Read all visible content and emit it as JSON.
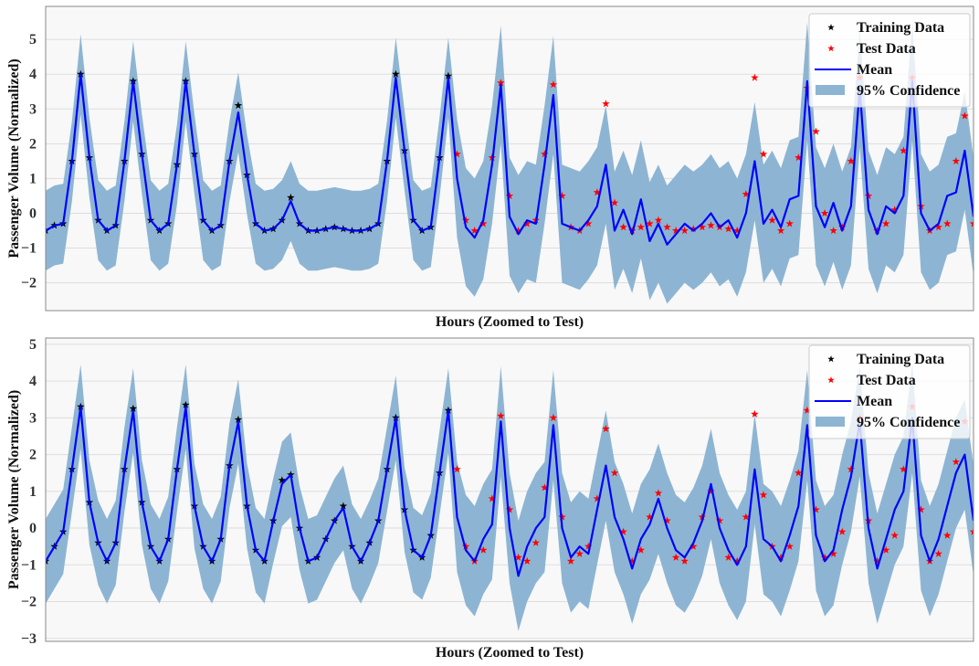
{
  "colors": {
    "training": "#000000",
    "test": "#ff0000",
    "mean": "#0000ff",
    "confidence": "#8db5d3",
    "background": "#f8f8f8",
    "grid": "#dddddd"
  },
  "chart_data": [
    {
      "type": "line",
      "xlabel": "Hours (Zoomed to Test)",
      "ylabel": "Passenger Volume (Normalized)",
      "ylim": [
        -2.8,
        5.95
      ],
      "yticks": [
        -2,
        -1,
        0,
        1,
        2,
        3,
        4,
        5
      ],
      "grid": "horizontal",
      "legend_placement": "top-right",
      "legend": [
        "Training Data",
        "Test Data",
        "Mean",
        "95% Confidence"
      ],
      "x": [
        0,
        4,
        8,
        12,
        16,
        20,
        24,
        28,
        32,
        36,
        40,
        44,
        48,
        52,
        56,
        60,
        64,
        68,
        72,
        76,
        80,
        84,
        88,
        92,
        96,
        100,
        104,
        108,
        112,
        116,
        120,
        124,
        128,
        132,
        136,
        140,
        144,
        148,
        152,
        156,
        160,
        164,
        168,
        172,
        176,
        180,
        184,
        188,
        192,
        196,
        200,
        204,
        208,
        212,
        216,
        220,
        224,
        228,
        232,
        236,
        240,
        244,
        248,
        252,
        256,
        260,
        264,
        268,
        272,
        276,
        280,
        284,
        288,
        292,
        296,
        300,
        304,
        308,
        312,
        316,
        320,
        324,
        328,
        332,
        336,
        340,
        344,
        348,
        352,
        356,
        360,
        364,
        368,
        372,
        376,
        380,
        384,
        388,
        392,
        396,
        400,
        404,
        408,
        412,
        416,
        420,
        424
      ],
      "mean": [
        -0.5,
        -0.35,
        -0.3,
        1.5,
        4.0,
        1.6,
        -0.2,
        -0.5,
        -0.35,
        1.5,
        3.8,
        1.7,
        -0.2,
        -0.5,
        -0.3,
        1.4,
        3.8,
        1.7,
        -0.2,
        -0.5,
        -0.35,
        1.5,
        2.9,
        1.1,
        -0.3,
        -0.5,
        -0.45,
        -0.2,
        0.35,
        -0.3,
        -0.5,
        -0.5,
        -0.45,
        -0.4,
        -0.45,
        -0.5,
        -0.5,
        -0.45,
        -0.3,
        1.5,
        3.9,
        1.8,
        -0.2,
        -0.5,
        -0.4,
        1.6,
        3.9,
        1.0,
        -0.4,
        -0.7,
        -0.2,
        1.4,
        3.7,
        -0.1,
        -0.6,
        -0.2,
        -0.3,
        1.4,
        3.4,
        -0.3,
        -0.4,
        -0.5,
        -0.2,
        0.2,
        1.4,
        -0.5,
        0.1,
        -0.6,
        0.4,
        -0.8,
        -0.3,
        -0.9,
        -0.6,
        -0.3,
        -0.5,
        -0.3,
        0.0,
        -0.4,
        -0.2,
        -0.7,
        0.0,
        1.5,
        -0.3,
        0.1,
        -0.4,
        0.4,
        0.5,
        3.8,
        0.2,
        -0.4,
        0.3,
        -0.5,
        0.2,
        3.6,
        0.1,
        -0.6,
        0.2,
        0.0,
        0.5,
        3.8,
        0.0,
        -0.5,
        -0.3,
        0.5,
        0.6,
        1.8,
        -0.1
      ],
      "lower": [
        -1.65,
        -1.5,
        -1.45,
        0.35,
        2.85,
        0.45,
        -1.35,
        -1.65,
        -1.5,
        0.35,
        2.65,
        0.55,
        -1.35,
        -1.65,
        -1.45,
        0.25,
        2.65,
        0.55,
        -1.35,
        -1.65,
        -1.5,
        0.35,
        1.75,
        -0.05,
        -1.45,
        -1.65,
        -1.6,
        -1.35,
        -0.8,
        -1.45,
        -1.65,
        -1.65,
        -1.6,
        -1.55,
        -1.6,
        -1.65,
        -1.65,
        -1.6,
        -1.45,
        0.35,
        2.75,
        0.65,
        -1.35,
        -1.65,
        -1.55,
        0.45,
        2.75,
        -0.7,
        -2.1,
        -2.4,
        -1.9,
        -0.3,
        2.0,
        -1.8,
        -2.3,
        -1.9,
        -2.0,
        -0.3,
        1.7,
        -2.0,
        -2.1,
        -2.2,
        -1.9,
        -1.5,
        -0.3,
        -2.2,
        -1.6,
        -2.3,
        -1.3,
        -2.5,
        -2.0,
        -2.6,
        -2.3,
        -2.0,
        -2.2,
        -2.0,
        -1.7,
        -2.1,
        -1.9,
        -2.4,
        -1.7,
        -0.2,
        -2.0,
        -1.6,
        -2.1,
        -1.3,
        -1.2,
        2.1,
        -1.5,
        -2.1,
        -1.4,
        -2.2,
        -1.5,
        1.9,
        -1.6,
        -2.3,
        -1.5,
        -1.7,
        -1.2,
        2.1,
        -1.7,
        -2.2,
        -2.0,
        -1.2,
        -1.1,
        0.1,
        -1.8
      ],
      "upper": [
        0.65,
        0.8,
        0.85,
        2.65,
        5.15,
        2.75,
        0.95,
        0.65,
        0.8,
        2.65,
        4.95,
        2.85,
        0.95,
        0.65,
        0.85,
        2.55,
        4.95,
        2.85,
        0.95,
        0.65,
        0.8,
        2.65,
        4.05,
        2.25,
        0.85,
        0.65,
        0.7,
        0.95,
        1.5,
        0.85,
        0.65,
        0.65,
        0.7,
        0.75,
        0.7,
        0.65,
        0.65,
        0.7,
        0.85,
        2.65,
        5.05,
        2.95,
        0.95,
        0.65,
        0.75,
        2.75,
        5.05,
        2.7,
        1.3,
        1.0,
        1.5,
        3.1,
        5.4,
        1.6,
        1.1,
        1.5,
        1.4,
        3.1,
        5.1,
        1.4,
        1.3,
        1.2,
        1.5,
        1.9,
        3.1,
        1.2,
        1.8,
        1.1,
        2.1,
        0.9,
        1.4,
        0.8,
        1.1,
        1.4,
        1.2,
        1.4,
        1.7,
        1.3,
        1.5,
        1.0,
        1.7,
        3.2,
        1.4,
        1.8,
        1.3,
        2.1,
        2.2,
        5.5,
        1.9,
        1.3,
        2.0,
        1.2,
        1.9,
        5.3,
        1.8,
        1.1,
        1.9,
        1.7,
        2.2,
        5.5,
        1.7,
        1.2,
        1.4,
        2.2,
        2.3,
        3.5,
        1.6
      ],
      "training": [
        -0.5,
        -0.35,
        -0.3,
        1.5,
        4.0,
        1.6,
        -0.2,
        -0.5,
        -0.35,
        1.5,
        3.8,
        1.7,
        -0.2,
        -0.5,
        -0.3,
        1.4,
        3.8,
        1.7,
        -0.2,
        -0.5,
        -0.35,
        1.5,
        3.1,
        1.1,
        -0.3,
        -0.5,
        -0.45,
        -0.2,
        0.45,
        -0.3,
        -0.5,
        -0.5,
        -0.45,
        -0.4,
        -0.45,
        -0.5,
        -0.5,
        -0.45,
        -0.3,
        1.5,
        4.0,
        1.8,
        -0.2,
        -0.5,
        -0.4,
        1.6,
        3.95
      ],
      "test": [
        1.7,
        -0.2,
        -0.5,
        -0.3,
        1.6,
        3.75,
        0.5,
        -0.5,
        -0.3,
        -0.2,
        1.7,
        3.7,
        0.5,
        -0.4,
        -0.5,
        -0.3,
        0.6,
        3.15,
        0.3,
        -0.4,
        -0.5,
        -0.4,
        -0.3,
        -0.2,
        -0.4,
        -0.5,
        -0.5,
        -0.45,
        -0.4,
        -0.35,
        -0.4,
        -0.45,
        -0.5,
        0.55,
        3.9,
        1.7,
        -0.2,
        -0.5,
        -0.3,
        1.6,
        3.6,
        2.35,
        0.0,
        -0.5,
        -0.4,
        1.5,
        3.9,
        0.5,
        -0.5,
        -0.3,
        0.1,
        1.8,
        3.9,
        0.2,
        -0.5,
        -0.4,
        -0.3,
        1.5,
        2.8,
        -0.3
      ]
    },
    {
      "type": "line",
      "xlabel": "Hours (Zoomed to Test)",
      "ylabel": "Passenger Volume (Normalized)",
      "ylim": [
        -3.08,
        5.17
      ],
      "yticks": [
        -3,
        -2,
        -1,
        0,
        1,
        2,
        3,
        4,
        5
      ],
      "grid": "horizontal",
      "legend_placement": "top-right",
      "legend": [
        "Training Data",
        "Test Data",
        "Mean",
        "95% Confidence"
      ],
      "x": [
        0,
        4,
        8,
        12,
        16,
        20,
        24,
        28,
        32,
        36,
        40,
        44,
        48,
        52,
        56,
        60,
        64,
        68,
        72,
        76,
        80,
        84,
        88,
        92,
        96,
        100,
        104,
        108,
        112,
        116,
        120,
        124,
        128,
        132,
        136,
        140,
        144,
        148,
        152,
        156,
        160,
        164,
        168,
        172,
        176,
        180,
        184,
        188,
        192,
        196,
        200,
        204,
        208,
        212,
        216,
        220,
        224,
        228,
        232,
        236,
        240,
        244,
        248,
        252,
        256,
        260,
        264,
        268,
        272,
        276,
        280,
        284,
        288,
        292,
        296,
        300,
        304,
        308,
        312,
        316,
        320,
        324,
        328,
        332,
        336,
        340,
        344,
        348,
        352,
        356,
        360,
        364,
        368,
        372,
        376,
        380,
        384,
        388,
        392,
        396,
        400,
        404,
        408,
        412,
        416,
        420,
        424
      ],
      "mean": [
        -0.9,
        -0.5,
        -0.1,
        1.6,
        3.3,
        0.7,
        -0.4,
        -0.9,
        -0.4,
        1.6,
        3.2,
        0.7,
        -0.5,
        -0.9,
        -0.3,
        1.6,
        3.3,
        0.6,
        -0.5,
        -0.9,
        -0.3,
        1.7,
        2.9,
        0.6,
        -0.6,
        -0.9,
        0.2,
        1.2,
        1.45,
        0.0,
        -0.9,
        -0.8,
        -0.3,
        0.2,
        0.55,
        -0.5,
        -0.9,
        -0.4,
        0.2,
        1.6,
        3.0,
        0.5,
        -0.6,
        -0.8,
        -0.2,
        1.5,
        3.2,
        0.3,
        -0.6,
        -0.9,
        -0.3,
        0.1,
        2.9,
        0.0,
        -1.3,
        -0.5,
        0.0,
        0.3,
        2.8,
        0.0,
        -0.8,
        -0.5,
        -0.7,
        0.5,
        1.7,
        0.3,
        -0.3,
        -1.1,
        -0.3,
        0.1,
        0.8,
        0.0,
        -0.6,
        -0.8,
        -0.4,
        0.2,
        1.2,
        0.0,
        -0.6,
        -1.0,
        -0.5,
        1.6,
        -0.3,
        -0.5,
        -0.9,
        -0.2,
        0.6,
        2.8,
        -0.2,
        -0.9,
        -0.6,
        0.5,
        1.4,
        2.9,
        0.0,
        -1.1,
        -0.3,
        0.5,
        1.0,
        3.0,
        -0.2,
        -0.9,
        -0.3,
        0.6,
        1.5,
        2.0,
        0.2
      ],
      "lower": [
        -2.05,
        -1.65,
        -1.25,
        0.45,
        2.15,
        -0.45,
        -1.55,
        -2.05,
        -1.55,
        0.45,
        2.05,
        -0.45,
        -1.65,
        -2.05,
        -1.45,
        0.45,
        2.15,
        -0.55,
        -1.65,
        -2.05,
        -1.45,
        0.55,
        1.75,
        -0.55,
        -1.75,
        -2.05,
        -0.95,
        0.05,
        0.3,
        -1.15,
        -2.05,
        -1.95,
        -1.45,
        -0.95,
        -0.6,
        -1.65,
        -2.05,
        -1.55,
        -0.95,
        0.45,
        1.85,
        -0.65,
        -1.75,
        -1.95,
        -1.35,
        0.35,
        2.05,
        -1.2,
        -2.1,
        -2.4,
        -1.8,
        -1.4,
        1.4,
        -1.5,
        -2.8,
        -2.0,
        -1.5,
        -1.2,
        1.3,
        -1.5,
        -2.3,
        -2.0,
        -2.2,
        -1.0,
        0.2,
        -1.2,
        -1.8,
        -2.6,
        -1.8,
        -1.4,
        -0.7,
        -1.5,
        -2.1,
        -2.3,
        -1.9,
        -1.3,
        -0.3,
        -1.5,
        -2.1,
        -2.5,
        -2.0,
        0.1,
        -1.8,
        -2.0,
        -2.4,
        -1.7,
        -0.9,
        1.3,
        -1.7,
        -2.4,
        -2.1,
        -1.0,
        -0.1,
        1.4,
        -1.5,
        -2.6,
        -1.8,
        -1.0,
        -0.5,
        1.5,
        -1.7,
        -2.4,
        -1.8,
        -0.9,
        0.0,
        0.5,
        -1.3
      ],
      "upper": [
        0.25,
        0.65,
        1.05,
        2.75,
        4.45,
        1.85,
        0.75,
        0.25,
        0.75,
        2.75,
        4.35,
        1.85,
        0.65,
        0.25,
        0.85,
        2.75,
        4.45,
        1.75,
        0.65,
        0.25,
        0.85,
        2.85,
        4.05,
        1.75,
        0.55,
        0.25,
        1.35,
        2.35,
        2.6,
        1.15,
        0.25,
        0.35,
        0.85,
        1.35,
        1.7,
        0.65,
        0.25,
        0.75,
        1.35,
        2.75,
        4.15,
        1.65,
        0.55,
        0.35,
        0.95,
        2.65,
        4.35,
        1.8,
        0.9,
        0.6,
        1.2,
        1.6,
        4.4,
        1.5,
        0.2,
        1.0,
        1.5,
        1.8,
        4.3,
        1.5,
        0.7,
        1.0,
        0.8,
        2.0,
        3.2,
        1.8,
        1.2,
        0.4,
        1.2,
        1.6,
        2.3,
        1.5,
        0.9,
        0.7,
        1.1,
        1.7,
        2.7,
        1.5,
        0.9,
        0.5,
        1.0,
        3.1,
        1.2,
        1.0,
        0.6,
        1.3,
        2.1,
        4.3,
        1.3,
        0.6,
        0.9,
        2.0,
        2.9,
        4.4,
        1.5,
        0.4,
        1.2,
        2.0,
        2.5,
        4.5,
        1.3,
        0.6,
        1.2,
        2.1,
        3.0,
        3.5,
        1.7
      ],
      "training": [
        -0.9,
        -0.5,
        -0.1,
        1.6,
        3.3,
        0.7,
        -0.4,
        -0.9,
        -0.4,
        1.6,
        3.25,
        0.7,
        -0.5,
        -0.9,
        -0.3,
        1.6,
        3.35,
        0.6,
        -0.5,
        -0.9,
        -0.3,
        1.7,
        2.95,
        0.6,
        -0.6,
        -0.9,
        0.2,
        1.3,
        1.45,
        0.0,
        -0.9,
        -0.8,
        -0.3,
        0.2,
        0.6,
        -0.5,
        -0.9,
        -0.4,
        0.2,
        1.6,
        3.0,
        0.5,
        -0.6,
        -0.8,
        -0.2,
        1.5,
        3.2
      ],
      "test": [
        1.6,
        -0.5,
        -0.9,
        -0.6,
        0.8,
        3.05,
        0.5,
        -0.8,
        -0.9,
        -0.4,
        1.1,
        3.0,
        0.3,
        -0.9,
        -0.7,
        -0.5,
        0.8,
        2.7,
        1.5,
        -0.1,
        -0.9,
        -0.6,
        0.3,
        0.95,
        0.2,
        -0.8,
        -0.9,
        -0.5,
        0.3,
        1.0,
        0.2,
        -0.8,
        -0.9,
        0.3,
        3.1,
        0.9,
        -0.5,
        -0.8,
        -0.5,
        1.5,
        3.2,
        0.5,
        -0.8,
        -0.7,
        -0.1,
        1.6,
        3.0,
        0.2,
        -0.9,
        -0.6,
        -0.2,
        1.6,
        3.3,
        0.5,
        -0.9,
        -0.7,
        -0.2,
        1.8,
        2.9,
        -0.1
      ]
    }
  ]
}
